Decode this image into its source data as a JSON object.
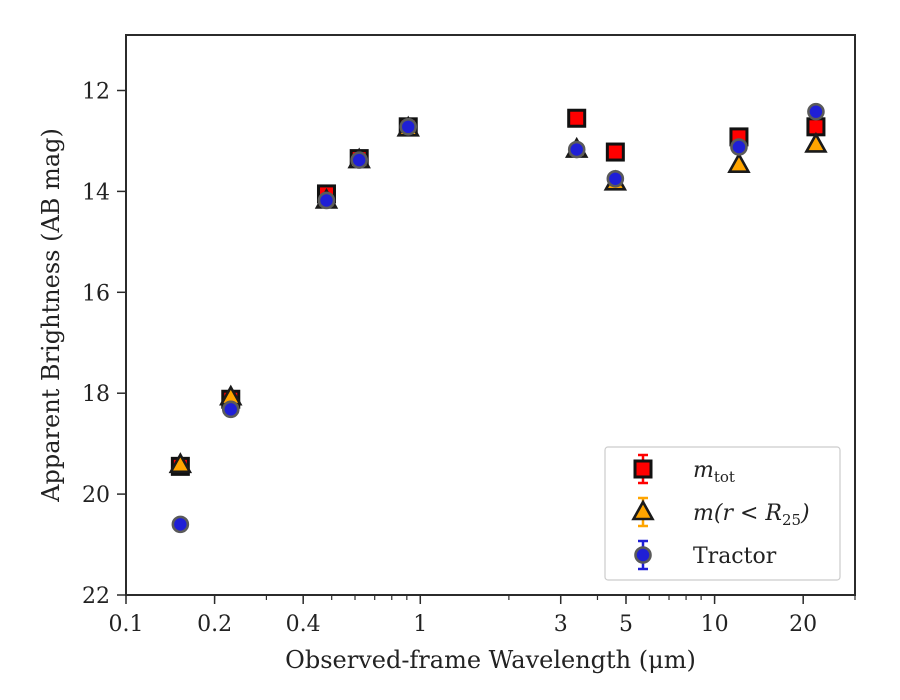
{
  "chart_data": {
    "type": "scatter",
    "xlabel": "Observed-frame Wavelength (μm)",
    "ylabel": "Apparent Brightness (AB mag)",
    "x_scale": "log",
    "xlim": [
      0.1,
      30
    ],
    "ylim": [
      22,
      10.9
    ],
    "y_inverted": true,
    "x_ticks": [
      {
        "value": 0.1,
        "label": "0.1"
      },
      {
        "value": 0.2,
        "label": "0.2"
      },
      {
        "value": 0.4,
        "label": "0.4"
      },
      {
        "value": 1,
        "label": "1"
      },
      {
        "value": 3,
        "label": "3"
      },
      {
        "value": 5,
        "label": "5"
      },
      {
        "value": 10,
        "label": "10"
      },
      {
        "value": 20,
        "label": "20"
      }
    ],
    "y_ticks": [
      {
        "value": 12,
        "label": "12"
      },
      {
        "value": 14,
        "label": "14"
      },
      {
        "value": 16,
        "label": "16"
      },
      {
        "value": 18,
        "label": "18"
      },
      {
        "value": 20,
        "label": "20"
      },
      {
        "value": 22,
        "label": "22"
      }
    ],
    "legend_position": "lower-right",
    "series": [
      {
        "name": "m_tot",
        "legend_main": "m",
        "legend_sub": "tot",
        "legend_tail": "",
        "marker": "square",
        "color": "#ff0000",
        "x": [
          0.153,
          0.227,
          0.48,
          0.62,
          0.91,
          3.4,
          4.6,
          12.1,
          22.1
        ],
        "y": [
          19.45,
          18.12,
          14.05,
          13.35,
          12.72,
          12.55,
          13.22,
          12.92,
          12.72
        ]
      },
      {
        "name": "m(r<R25)",
        "legend_main": "m(r < R",
        "legend_sub": "25",
        "legend_tail": ")",
        "marker": "triangle",
        "color": "#ffa500",
        "x": [
          0.153,
          0.227,
          0.48,
          0.62,
          0.91,
          3.4,
          4.6,
          12.1,
          22.1
        ],
        "y": [
          19.42,
          18.08,
          14.18,
          13.38,
          12.75,
          13.17,
          13.82,
          13.47,
          13.07
        ]
      },
      {
        "name": "Tractor",
        "legend_main": "Tractor",
        "legend_sub": "",
        "legend_tail": "",
        "marker": "circle",
        "color": "#1f1fd6",
        "x": [
          0.153,
          0.227,
          0.48,
          0.62,
          0.91,
          3.4,
          4.6,
          12.1,
          22.1
        ],
        "y": [
          20.6,
          18.32,
          14.18,
          13.38,
          12.72,
          13.17,
          13.75,
          13.12,
          12.42
        ]
      }
    ]
  }
}
